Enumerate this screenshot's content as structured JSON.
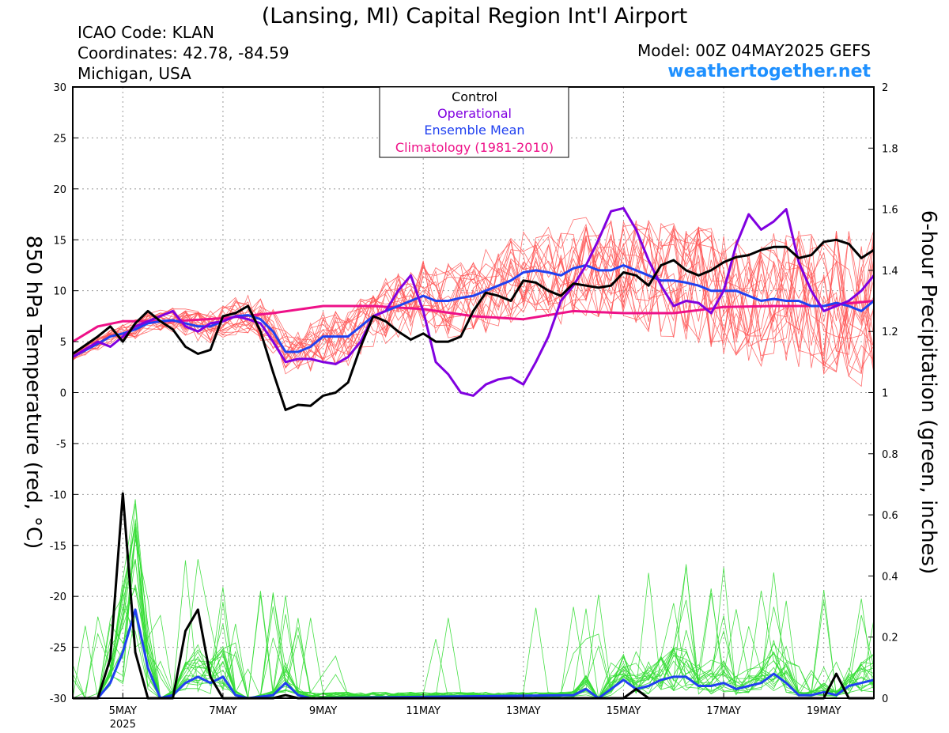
{
  "header": {
    "title": "(Lansing, MI) Capital Region Int'l Airport",
    "icao": "ICAO Code: KLAN",
    "coords": "Coordinates: 42.78, -84.59",
    "region": "Michigan, USA",
    "model": "Model: 00Z 04MAY2025 GEFS",
    "site": "weathertogether.net"
  },
  "colors": {
    "control": "#000000",
    "operational": "#8000e0",
    "mean": "#2040f0",
    "climo": "#ee1188",
    "members_temp": "#ff5555",
    "members_precip": "#33dd33",
    "site": "#1e90ff"
  },
  "chart_data": {
    "type": "line",
    "ylabel_left": "850 hPa Temperature (red, °C)",
    "ylabel_right": "6-hour Precipitation (green, inches)",
    "ylim_left": [
      -30,
      30
    ],
    "ylim_right": [
      0,
      2
    ],
    "yticks_left": [
      30,
      25,
      20,
      15,
      10,
      5,
      0,
      -5,
      -10,
      -15,
      -20,
      -25,
      -30
    ],
    "yticks_right": [
      2,
      1.8,
      1.6,
      1.4,
      1.2,
      1,
      0.8,
      0.6,
      0.4,
      0.2,
      0
    ],
    "xlim_days": [
      4.0,
      20.0
    ],
    "xticks": [
      {
        "day": 5,
        "label": "5MAY",
        "sub": "2025"
      },
      {
        "day": 7,
        "label": "7MAY",
        "sub": ""
      },
      {
        "day": 9,
        "label": "9MAY",
        "sub": ""
      },
      {
        "day": 11,
        "label": "11MAY",
        "sub": ""
      },
      {
        "day": 13,
        "label": "13MAY",
        "sub": ""
      },
      {
        "day": 15,
        "label": "15MAY",
        "sub": ""
      },
      {
        "day": 17,
        "label": "17MAY",
        "sub": ""
      },
      {
        "day": 19,
        "label": "19MAY",
        "sub": ""
      }
    ],
    "legend": {
      "placement": "top-center",
      "entries": [
        {
          "label": "Control",
          "color": "#000000"
        },
        {
          "label": "Operational",
          "color": "#8000e0"
        },
        {
          "label": "Ensemble Mean",
          "color": "#2040f0"
        },
        {
          "label": "Climatology (1981-2010)",
          "color": "#ee1188"
        }
      ]
    },
    "temperature": {
      "control": [
        [
          4,
          3.8
        ],
        [
          4.5,
          5.5
        ],
        [
          4.75,
          6.5
        ],
        [
          5,
          5
        ],
        [
          5.25,
          6.8
        ],
        [
          5.5,
          8
        ],
        [
          5.75,
          7
        ],
        [
          6,
          6.2
        ],
        [
          6.25,
          4.5
        ],
        [
          6.5,
          3.8
        ],
        [
          6.75,
          4.2
        ],
        [
          7,
          7.5
        ],
        [
          7.25,
          7.8
        ],
        [
          7.5,
          8.5
        ],
        [
          7.75,
          6
        ],
        [
          8,
          2
        ],
        [
          8.25,
          -1.7
        ],
        [
          8.5,
          -1.2
        ],
        [
          8.75,
          -1.3
        ],
        [
          9,
          -0.3
        ],
        [
          9.25,
          0
        ],
        [
          9.5,
          1
        ],
        [
          9.75,
          4.5
        ],
        [
          10,
          7.5
        ],
        [
          10.25,
          7
        ],
        [
          10.5,
          6
        ],
        [
          10.75,
          5.2
        ],
        [
          11,
          5.8
        ],
        [
          11.25,
          5
        ],
        [
          11.5,
          5
        ],
        [
          11.75,
          5.5
        ],
        [
          12,
          8
        ],
        [
          12.25,
          9.8
        ],
        [
          12.5,
          9.5
        ],
        [
          12.75,
          9
        ],
        [
          13,
          11
        ],
        [
          13.25,
          10.8
        ],
        [
          13.5,
          10
        ],
        [
          13.75,
          9.5
        ],
        [
          14,
          10.7
        ],
        [
          14.25,
          10.5
        ],
        [
          14.5,
          10.3
        ],
        [
          14.75,
          10.5
        ],
        [
          15,
          11.8
        ],
        [
          15.25,
          11.5
        ],
        [
          15.5,
          10.5
        ],
        [
          15.75,
          12.5
        ],
        [
          16,
          13
        ],
        [
          16.25,
          12
        ],
        [
          16.5,
          11.5
        ],
        [
          16.75,
          12
        ],
        [
          17,
          12.8
        ],
        [
          17.25,
          13.3
        ],
        [
          17.5,
          13.5
        ],
        [
          17.75,
          14
        ],
        [
          18,
          14.3
        ],
        [
          18.25,
          14.3
        ],
        [
          18.5,
          13.2
        ],
        [
          18.75,
          13.5
        ],
        [
          19,
          14.8
        ],
        [
          19.25,
          15
        ],
        [
          19.5,
          14.6
        ],
        [
          19.75,
          13.2
        ],
        [
          20,
          14
        ]
      ],
      "operational": [
        [
          4,
          3.5
        ],
        [
          4.5,
          5
        ],
        [
          4.75,
          4.5
        ],
        [
          5,
          5.5
        ],
        [
          5.25,
          6.5
        ],
        [
          5.5,
          7
        ],
        [
          5.75,
          7.5
        ],
        [
          6,
          8
        ],
        [
          6.25,
          6.5
        ],
        [
          6.5,
          6
        ],
        [
          6.75,
          6.8
        ],
        [
          7,
          7
        ],
        [
          7.25,
          7.5
        ],
        [
          7.5,
          7.2
        ],
        [
          7.75,
          6.8
        ],
        [
          8,
          5
        ],
        [
          8.25,
          3
        ],
        [
          8.5,
          3.3
        ],
        [
          8.75,
          3.3
        ],
        [
          9,
          3
        ],
        [
          9.25,
          2.8
        ],
        [
          9.5,
          3.5
        ],
        [
          9.75,
          5
        ],
        [
          10,
          7.5
        ],
        [
          10.25,
          8
        ],
        [
          10.5,
          10
        ],
        [
          10.75,
          11.5
        ],
        [
          11,
          8
        ],
        [
          11.25,
          3
        ],
        [
          11.5,
          1.8
        ],
        [
          11.75,
          0
        ],
        [
          12,
          -0.3
        ],
        [
          12.25,
          0.8
        ],
        [
          12.5,
          1.3
        ],
        [
          12.75,
          1.5
        ],
        [
          13,
          0.8
        ],
        [
          13.25,
          3
        ],
        [
          13.5,
          5.5
        ],
        [
          13.75,
          9
        ],
        [
          14,
          10.5
        ],
        [
          14.25,
          12.5
        ],
        [
          14.5,
          15
        ],
        [
          14.75,
          17.8
        ],
        [
          15,
          18.1
        ],
        [
          15.25,
          16
        ],
        [
          15.5,
          13
        ],
        [
          15.75,
          10.5
        ],
        [
          16,
          8.5
        ],
        [
          16.25,
          9
        ],
        [
          16.5,
          8.8
        ],
        [
          16.75,
          7.8
        ],
        [
          17,
          10
        ],
        [
          17.25,
          14.5
        ],
        [
          17.5,
          17.5
        ],
        [
          17.75,
          16
        ],
        [
          18,
          16.8
        ],
        [
          18.25,
          18
        ],
        [
          18.5,
          12.8
        ],
        [
          18.75,
          10
        ],
        [
          19,
          8
        ],
        [
          19.25,
          8.5
        ],
        [
          19.5,
          9
        ],
        [
          19.75,
          10
        ],
        [
          20,
          11.5
        ]
      ],
      "mean": [
        [
          4,
          3.5
        ],
        [
          4.5,
          4.8
        ],
        [
          4.75,
          5.5
        ],
        [
          5,
          5.8
        ],
        [
          5.25,
          6.2
        ],
        [
          5.5,
          6.8
        ],
        [
          5.75,
          7
        ],
        [
          6,
          7.1
        ],
        [
          6.25,
          6.8
        ],
        [
          6.5,
          6.5
        ],
        [
          6.75,
          6.5
        ],
        [
          7,
          7
        ],
        [
          7.25,
          7.5
        ],
        [
          7.5,
          7.6
        ],
        [
          7.75,
          7.2
        ],
        [
          8,
          6
        ],
        [
          8.25,
          4
        ],
        [
          8.5,
          4
        ],
        [
          8.75,
          4.5
        ],
        [
          9,
          5.5
        ],
        [
          9.25,
          5.5
        ],
        [
          9.5,
          5.5
        ],
        [
          9.75,
          6.5
        ],
        [
          10,
          7.5
        ],
        [
          10.25,
          8
        ],
        [
          10.5,
          8.5
        ],
        [
          10.75,
          9
        ],
        [
          11,
          9.5
        ],
        [
          11.25,
          9
        ],
        [
          11.5,
          9
        ],
        [
          11.75,
          9.3
        ],
        [
          12,
          9.5
        ],
        [
          12.25,
          10
        ],
        [
          12.5,
          10.5
        ],
        [
          12.75,
          11
        ],
        [
          13,
          11.8
        ],
        [
          13.25,
          12
        ],
        [
          13.5,
          11.8
        ],
        [
          13.75,
          11.5
        ],
        [
          14,
          12.2
        ],
        [
          14.25,
          12.5
        ],
        [
          14.5,
          12
        ],
        [
          14.75,
          12
        ],
        [
          15,
          12.5
        ],
        [
          15.25,
          12
        ],
        [
          15.5,
          11.5
        ],
        [
          15.75,
          11
        ],
        [
          16,
          11
        ],
        [
          16.25,
          10.8
        ],
        [
          16.5,
          10.5
        ],
        [
          16.75,
          10
        ],
        [
          17,
          10
        ],
        [
          17.25,
          10
        ],
        [
          17.5,
          9.5
        ],
        [
          17.75,
          9
        ],
        [
          18,
          9.2
        ],
        [
          18.25,
          9
        ],
        [
          18.5,
          9
        ],
        [
          18.75,
          8.5
        ],
        [
          19,
          8.5
        ],
        [
          19.25,
          8.8
        ],
        [
          19.5,
          8.5
        ],
        [
          19.75,
          8
        ],
        [
          20,
          9
        ]
      ],
      "climatology": [
        [
          4,
          5
        ],
        [
          4.5,
          6.5
        ],
        [
          5,
          7
        ],
        [
          6,
          7
        ],
        [
          7,
          7.3
        ],
        [
          8,
          7.8
        ],
        [
          9,
          8.5
        ],
        [
          10,
          8.5
        ],
        [
          11,
          8.2
        ],
        [
          12,
          7.5
        ],
        [
          13,
          7.2
        ],
        [
          14,
          8
        ],
        [
          15,
          7.8
        ],
        [
          16,
          7.8
        ],
        [
          17,
          8.4
        ],
        [
          18,
          8.5
        ],
        [
          19,
          8.5
        ],
        [
          20,
          9
        ]
      ]
    },
    "precipitation": {
      "control": [
        [
          4,
          0
        ],
        [
          4.5,
          0
        ],
        [
          4.75,
          0.13
        ],
        [
          5,
          0.67
        ],
        [
          5.25,
          0.15
        ],
        [
          5.5,
          0
        ],
        [
          6,
          0
        ],
        [
          6.25,
          0.22
        ],
        [
          6.5,
          0.29
        ],
        [
          6.75,
          0.07
        ],
        [
          7,
          0
        ],
        [
          8,
          0
        ],
        [
          8.25,
          0.01
        ],
        [
          8.5,
          0
        ],
        [
          15,
          0
        ],
        [
          15.25,
          0.03
        ],
        [
          15.5,
          0
        ],
        [
          19,
          0
        ],
        [
          19.25,
          0.08
        ],
        [
          19.5,
          0
        ],
        [
          20,
          0
        ]
      ],
      "mean": [
        [
          4,
          0
        ],
        [
          4.5,
          0
        ],
        [
          4.75,
          0.05
        ],
        [
          5,
          0.15
        ],
        [
          5.25,
          0.29
        ],
        [
          5.5,
          0.1
        ],
        [
          5.75,
          0
        ],
        [
          6,
          0.01
        ],
        [
          6.25,
          0.05
        ],
        [
          6.5,
          0.07
        ],
        [
          6.75,
          0.05
        ],
        [
          7,
          0.07
        ],
        [
          7.25,
          0.01
        ],
        [
          7.5,
          0
        ],
        [
          8,
          0.01
        ],
        [
          8.25,
          0.05
        ],
        [
          8.5,
          0.01
        ],
        [
          8.75,
          0
        ],
        [
          14,
          0.01
        ],
        [
          14.25,
          0.03
        ],
        [
          14.5,
          0
        ],
        [
          14.75,
          0.03
        ],
        [
          15,
          0.06
        ],
        [
          15.25,
          0.03
        ],
        [
          15.5,
          0.04
        ],
        [
          15.75,
          0.06
        ],
        [
          16,
          0.07
        ],
        [
          16.25,
          0.07
        ],
        [
          16.5,
          0.04
        ],
        [
          16.75,
          0.04
        ],
        [
          17,
          0.05
        ],
        [
          17.25,
          0.03
        ],
        [
          17.5,
          0.04
        ],
        [
          17.75,
          0.05
        ],
        [
          18,
          0.08
        ],
        [
          18.25,
          0.05
        ],
        [
          18.5,
          0.01
        ],
        [
          18.75,
          0.01
        ],
        [
          19,
          0.02
        ],
        [
          19.25,
          0.01
        ],
        [
          19.5,
          0.04
        ],
        [
          19.75,
          0.05
        ],
        [
          20,
          0.06
        ]
      ]
    }
  }
}
